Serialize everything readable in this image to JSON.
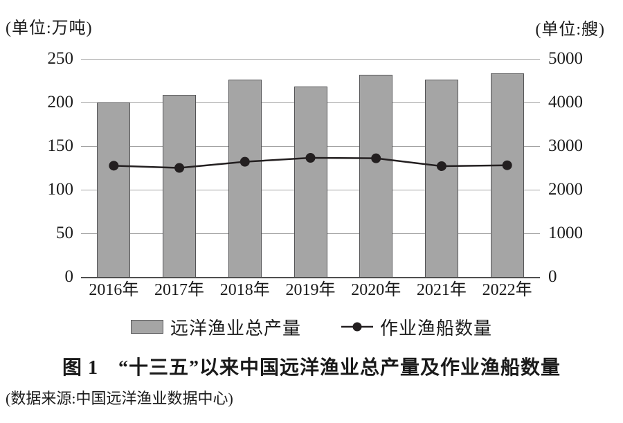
{
  "figure": {
    "title": "图 1　“十三五”以来中国远洋渔业总产量及作业渔船数量",
    "source": "(数据来源:中国远洋渔业数据中心)",
    "unit_left": "(单位:万吨)",
    "unit_right": "(单位:艘)"
  },
  "legend": {
    "bar_label": "远洋渔业总产量",
    "line_label": "作业渔船数量"
  },
  "colors": {
    "bar_fill": "#a5a5a5",
    "bar_border": "#545456",
    "line_color": "#231f20",
    "gridline": "#a0a0a0",
    "axis_line": "#4f4f4f",
    "text": "#1a1a1a"
  },
  "chart_data": {
    "type": "bar",
    "categories": [
      "2016年",
      "2017年",
      "2018年",
      "2019年",
      "2020年",
      "2021年",
      "2022年"
    ],
    "series": [
      {
        "name": "远洋渔业总产量",
        "type": "bar",
        "axis": "left",
        "values": [
          200,
          209,
          226,
          218,
          232,
          226,
          233
        ]
      },
      {
        "name": "作业渔船数量",
        "type": "line",
        "axis": "right",
        "values": [
          2550,
          2500,
          2640,
          2730,
          2720,
          2540,
          2560
        ]
      }
    ],
    "title": "图 1　“十三五”以来中国远洋渔业总产量及作业渔船数量",
    "xlabel": "",
    "left_axis": {
      "label": "(单位:万吨)",
      "ylim": [
        0,
        250
      ],
      "ticks": [
        0,
        50,
        100,
        150,
        200,
        250
      ]
    },
    "right_axis": {
      "label": "(单位:艘)",
      "ylim": [
        0,
        5000
      ],
      "ticks": [
        0,
        1000,
        2000,
        3000,
        4000,
        5000
      ]
    },
    "grid": true,
    "legend_position": "bottom",
    "source": "(数据来源:中国远洋渔业数据中心)"
  }
}
